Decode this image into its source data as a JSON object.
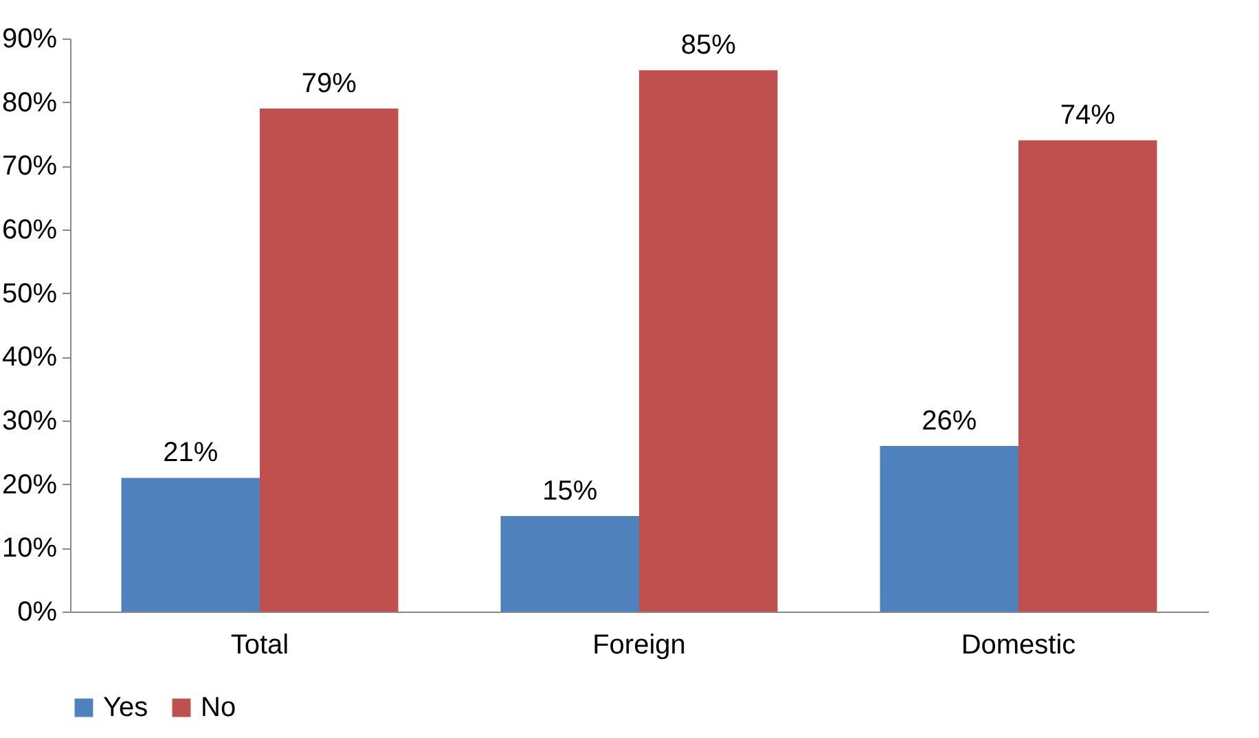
{
  "chart_data": {
    "type": "bar",
    "categories": [
      "Total",
      "Foreign",
      "Domestic"
    ],
    "series": [
      {
        "name": "Yes",
        "color": "#4f81bd",
        "values": [
          21,
          15,
          26
        ],
        "value_labels": [
          "21%",
          "15%",
          "26%"
        ]
      },
      {
        "name": "No",
        "color": "#c0504d",
        "values": [
          79,
          85,
          74
        ],
        "value_labels": [
          "79%",
          "85%",
          "74%"
        ]
      }
    ],
    "ylim": [
      0,
      90
    ],
    "yticks": [
      {
        "value": 0,
        "label": "0%"
      },
      {
        "value": 10,
        "label": "10%"
      },
      {
        "value": 20,
        "label": "20%"
      },
      {
        "value": 30,
        "label": "30%"
      },
      {
        "value": 40,
        "label": "40%"
      },
      {
        "value": 50,
        "label": "50%"
      },
      {
        "value": 60,
        "label": "60%"
      },
      {
        "value": 70,
        "label": "70%"
      },
      {
        "value": 80,
        "label": "80%"
      },
      {
        "value": 90,
        "label": "90%"
      }
    ],
    "grid": false,
    "legend": "bottom"
  }
}
